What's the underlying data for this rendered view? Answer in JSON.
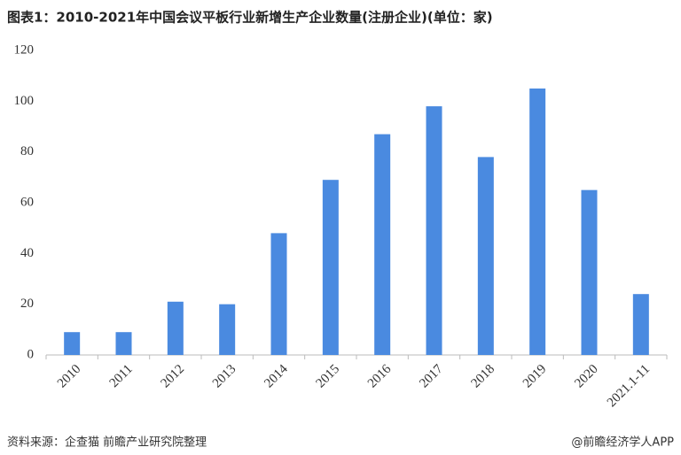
{
  "chart_data": {
    "type": "bar",
    "title": "图表1：2010-2021年中国会议平板行业新增生产企业数量(注册企业)(单位：家)",
    "categories": [
      "2010",
      "2011",
      "2012",
      "2013",
      "2014",
      "2015",
      "2016",
      "2017",
      "2018",
      "2019",
      "2020",
      "2021.1-11"
    ],
    "values": [
      9,
      9,
      21,
      20,
      48,
      69,
      87,
      98,
      78,
      105,
      65,
      24
    ],
    "color": "#4a8ae0",
    "ylim": [
      0,
      120
    ],
    "yticks": [
      0,
      20,
      40,
      60,
      80,
      100,
      120
    ],
    "grid": false
  },
  "footer": {
    "source": "资料来源：企查猫 前瞻产业研究院整理",
    "credit": "@前瞻经济学人APP"
  }
}
